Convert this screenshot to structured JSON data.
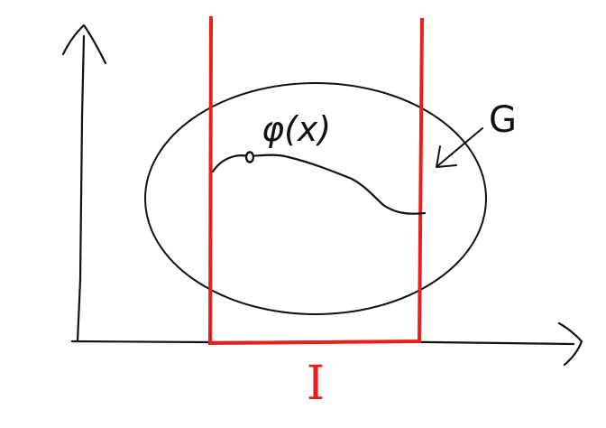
{
  "diagram": {
    "curve_label": "φ(x)",
    "set_label": "G",
    "interval_label": "I",
    "colors": {
      "ink": "#111111",
      "interval": "#e8201c",
      "background": "#ffffff"
    }
  }
}
